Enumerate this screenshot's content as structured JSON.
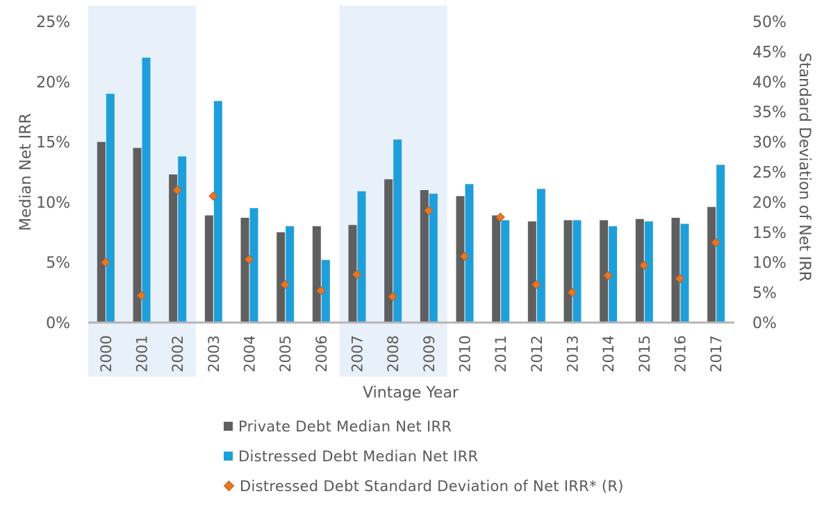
{
  "chart_data": {
    "type": "bar",
    "xlabel": "Vintage Year",
    "ylabel": "Median Net IRR",
    "y2label": "Standard Deviation of Net IRR",
    "ylim": [
      0,
      25
    ],
    "y2lim": [
      0,
      50
    ],
    "yticks": [
      "0%",
      "5%",
      "10%",
      "15%",
      "20%",
      "25%"
    ],
    "y2ticks": [
      "0%",
      "5%",
      "10%",
      "15%",
      "20%",
      "25%",
      "30%",
      "35%",
      "40%",
      "45%",
      "50%"
    ],
    "categories": [
      "2000",
      "2001",
      "2002",
      "2003",
      "2004",
      "2005",
      "2006",
      "2007",
      "2008",
      "2009",
      "2010",
      "2011",
      "2012",
      "2013",
      "2014",
      "2015",
      "2016",
      "2017"
    ],
    "shaded_periods": [
      [
        "2000",
        "2002"
      ],
      [
        "2007",
        "2009"
      ]
    ],
    "series": [
      {
        "name": "Private Debt Median Net IRR",
        "type": "bar",
        "axis": "left",
        "color": "#5f5f5f",
        "values": [
          15.0,
          14.5,
          12.3,
          8.9,
          8.7,
          7.5,
          8.0,
          8.1,
          11.9,
          11.0,
          10.5,
          8.9,
          8.4,
          8.5,
          8.5,
          8.6,
          8.7,
          9.6
        ]
      },
      {
        "name": "Distressed Debt Median Net IRR",
        "type": "bar",
        "axis": "left",
        "color": "#1f9fda",
        "values": [
          19.0,
          22.0,
          13.8,
          18.4,
          9.5,
          8.0,
          5.2,
          10.9,
          15.2,
          10.7,
          11.5,
          8.5,
          11.1,
          8.5,
          8.0,
          8.4,
          8.2,
          13.1
        ]
      },
      {
        "name": "Distressed Debt Standard Deviation of Net IRR* (R)",
        "type": "scatter",
        "axis": "right",
        "color": "#e87722",
        "values": [
          10.0,
          4.5,
          22.0,
          21.0,
          10.5,
          6.3,
          5.3,
          8.0,
          4.3,
          18.6,
          11.0,
          17.5,
          6.3,
          5.0,
          7.8,
          9.5,
          7.3,
          13.3
        ]
      }
    ]
  },
  "legend": {
    "items": [
      {
        "label": "Private Debt Median Net IRR",
        "color": "#5f5f5f"
      },
      {
        "label": "Distressed Debt Median Net IRR",
        "color": "#1f9fda"
      },
      {
        "label": "Distressed Debt Standard Deviation of Net IRR* (R)",
        "color": "#e87722"
      }
    ]
  },
  "colors": {
    "shade": "#e8f0f9",
    "axis": "#b5b5b5",
    "text": "#595959",
    "marker_border": "#c0612b"
  }
}
